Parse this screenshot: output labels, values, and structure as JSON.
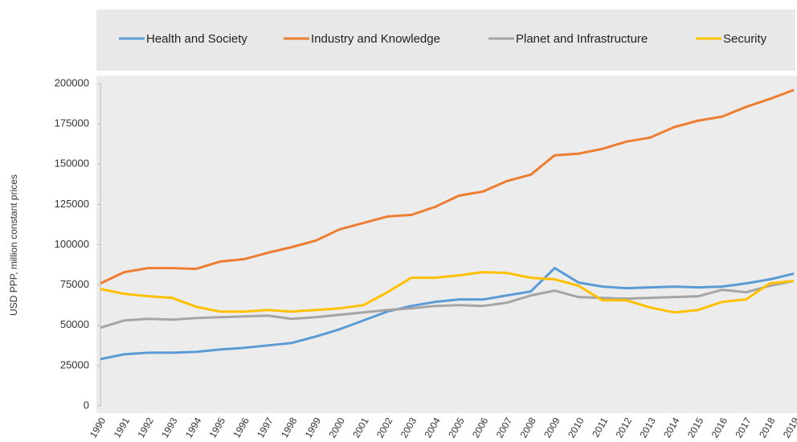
{
  "chart_data": {
    "type": "line",
    "y_label": "USD PPP, million constant prices",
    "categories": [
      "1990",
      "1991",
      "1992",
      "1993",
      "1994",
      "1995",
      "1996",
      "1997",
      "1998",
      "1999",
      "2000",
      "2001",
      "2002",
      "2003",
      "2004",
      "2005",
      "2006",
      "2007",
      "2008",
      "2009",
      "2010",
      "2011",
      "2012",
      "2013",
      "2014",
      "2015",
      "2016",
      "2017",
      "2018",
      "2019"
    ],
    "series": [
      {
        "name": "Health and Society",
        "color": "#5b9bd5",
        "values": [
          29000,
          32000,
          33000,
          33000,
          33500,
          35000,
          36000,
          37500,
          39000,
          43000,
          47500,
          53000,
          58500,
          62000,
          64500,
          66000,
          66000,
          68500,
          71000,
          85500,
          76500,
          74000,
          73000,
          73500,
          74000,
          73500,
          74000,
          76000,
          78500,
          82000
        ]
      },
      {
        "name": "Industry and Knowledge",
        "color": "#ed7d31",
        "values": [
          76000,
          83000,
          85500,
          85500,
          85000,
          89500,
          91000,
          95000,
          98500,
          102500,
          109500,
          113500,
          117500,
          118500,
          123500,
          130500,
          133000,
          139500,
          143500,
          155500,
          156500,
          159500,
          164000,
          166500,
          173000,
          177000,
          179500,
          185500,
          190500,
          196000
        ]
      },
      {
        "name": "Planet and Infrastructure",
        "color": "#a5a5a5",
        "values": [
          48500,
          53000,
          54000,
          53500,
          54500,
          55000,
          55500,
          56000,
          54000,
          55000,
          56500,
          58000,
          59500,
          60500,
          62000,
          62500,
          62000,
          64000,
          68500,
          71500,
          67500,
          67000,
          66500,
          67000,
          67500,
          68000,
          72000,
          70500,
          74500,
          77500
        ]
      },
      {
        "name": "Security",
        "color": "#ffc000",
        "values": [
          72500,
          69500,
          68000,
          67000,
          61500,
          58500,
          58500,
          59500,
          58500,
          59500,
          60500,
          62500,
          70500,
          79500,
          79500,
          81000,
          83000,
          82500,
          79500,
          78500,
          74500,
          65500,
          65500,
          61000,
          58000,
          59500,
          64500,
          66000,
          76000,
          77500
        ]
      }
    ],
    "ylim": [
      0,
      200000
    ],
    "yticks": [
      0,
      25000,
      50000,
      75000,
      100000,
      125000,
      150000,
      175000,
      200000
    ],
    "legend": "top"
  }
}
